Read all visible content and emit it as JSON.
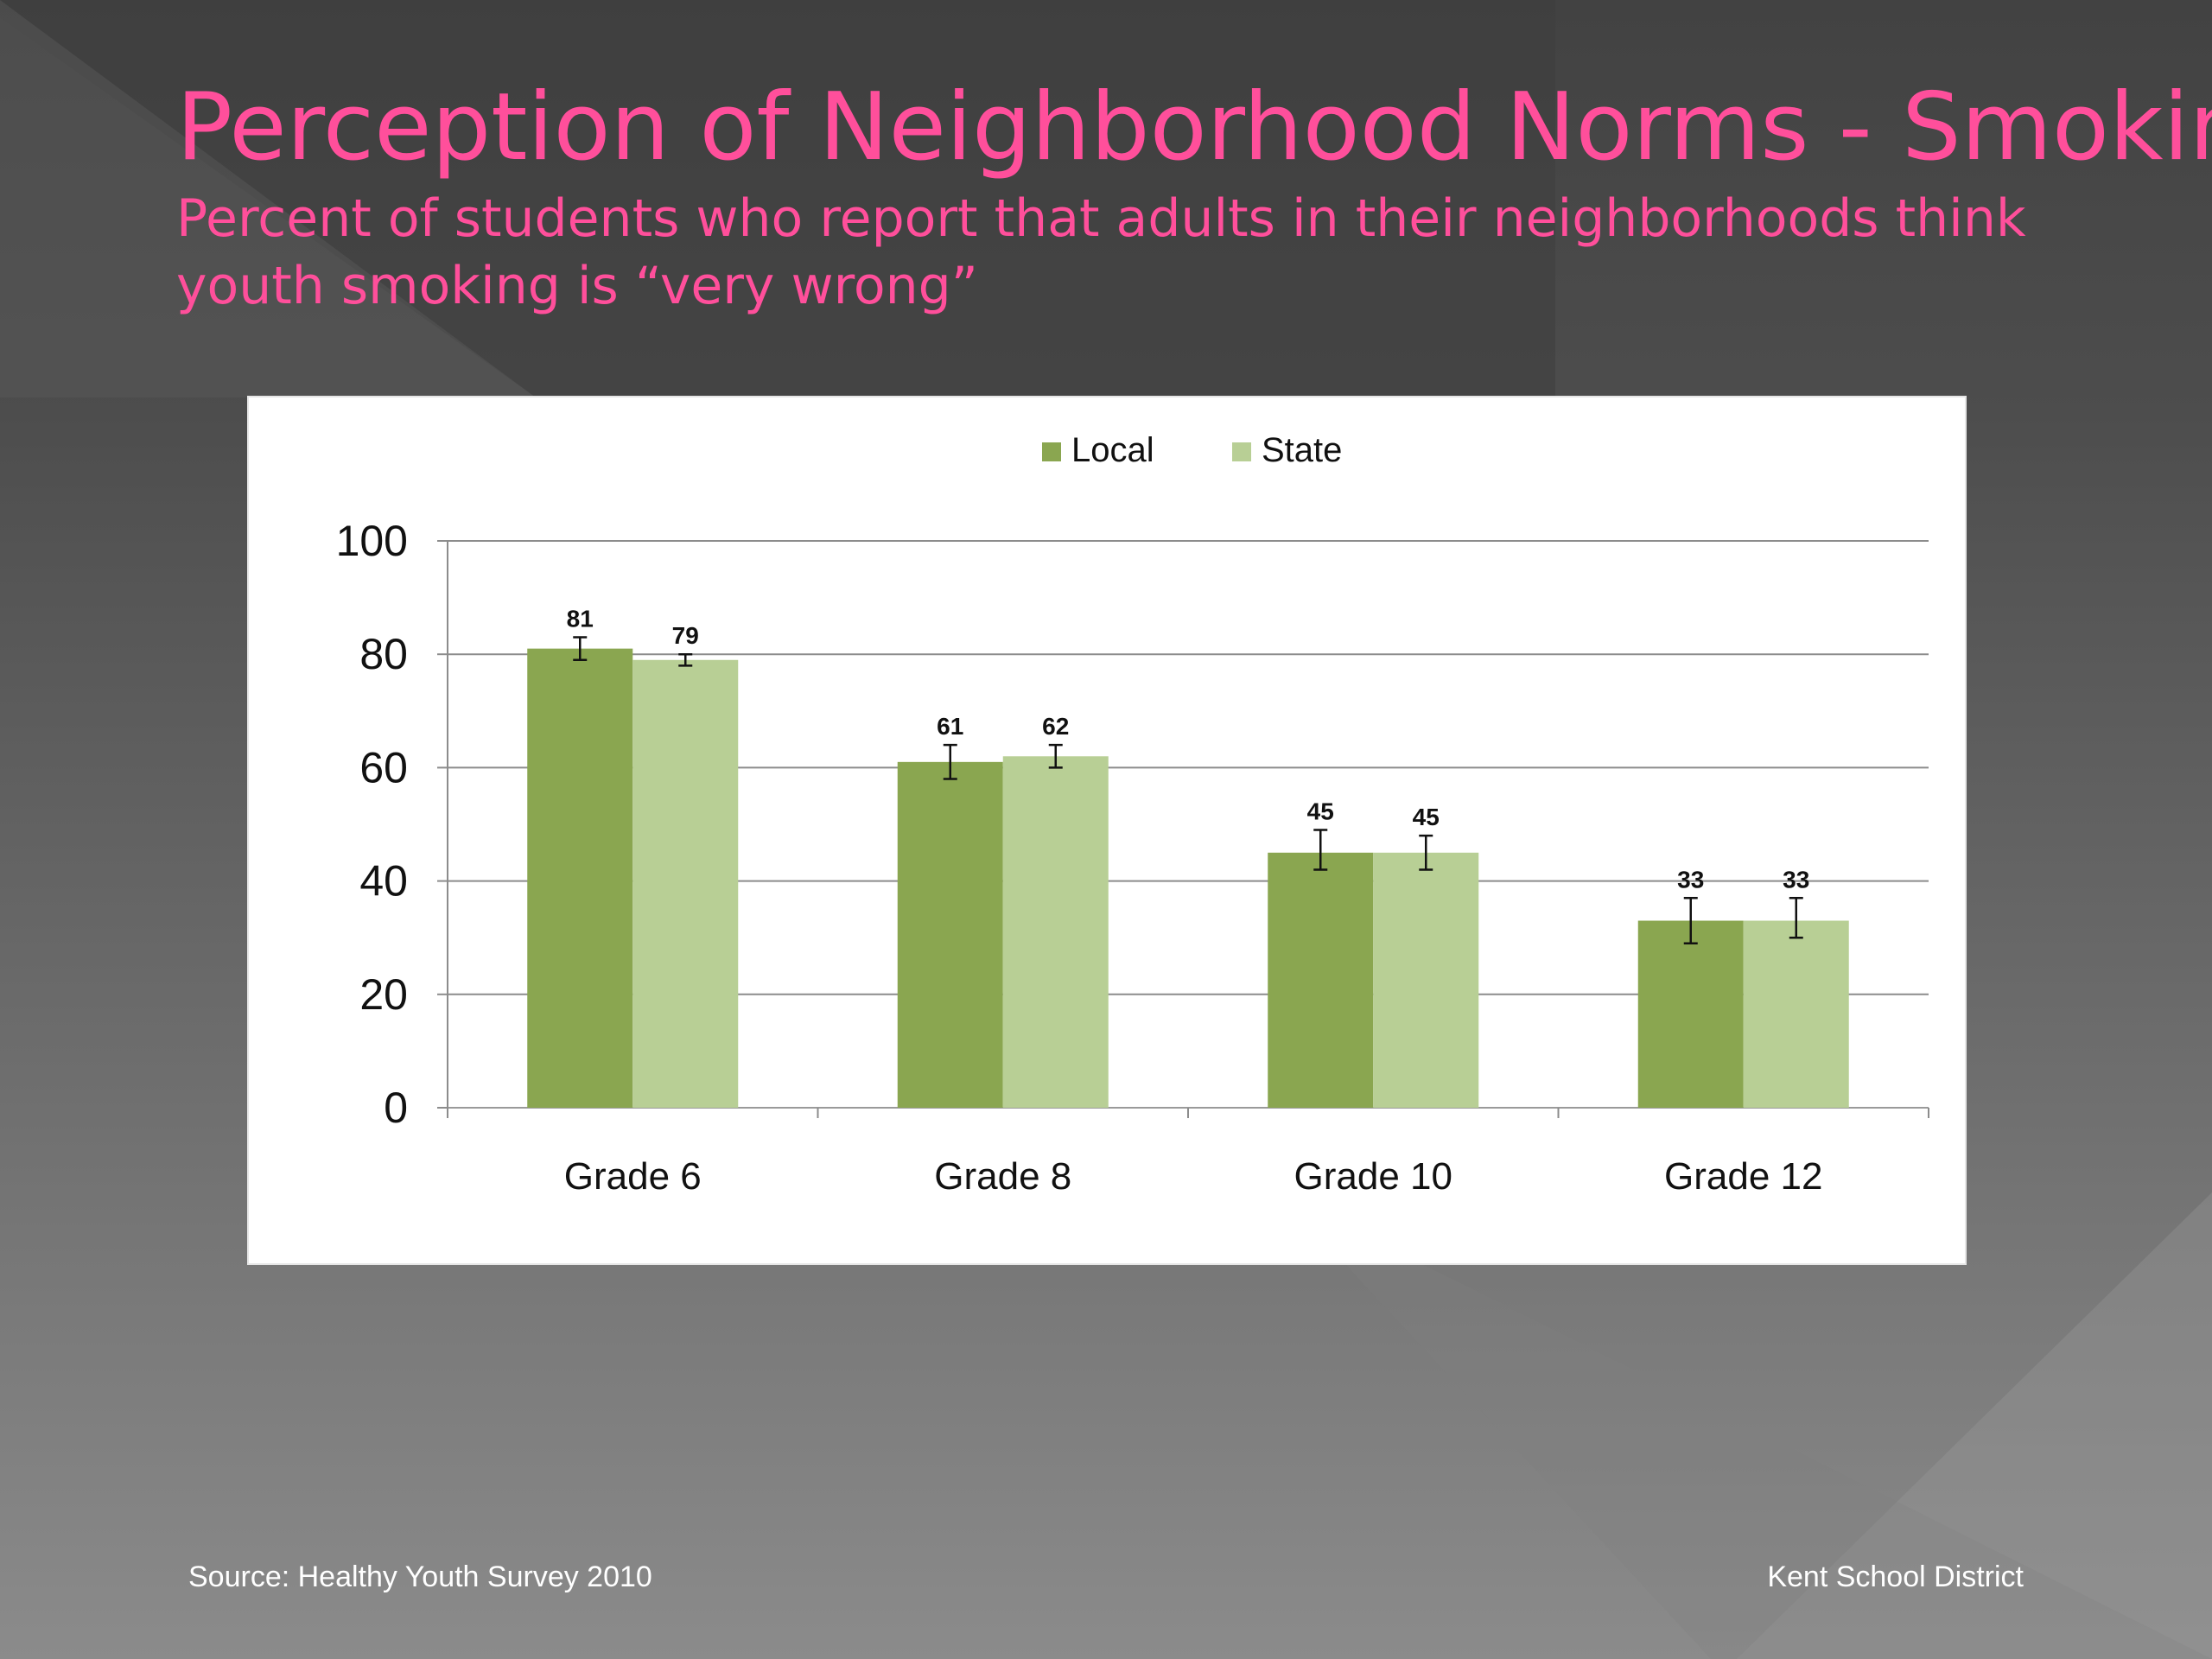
{
  "slide": {
    "title": "Perception of Neighborhood Norms - Smoking",
    "subtitle": "Percent of students who report that adults in their neighborhoods think youth smoking is “very wrong”",
    "source": "Source: Healthy Youth Survey 2010",
    "organization": "Kent School District",
    "colors": {
      "title": "#ff4f9b",
      "background": "#4d4d4d"
    }
  },
  "chart_data": {
    "type": "bar",
    "categories": [
      "Grade 6",
      "Grade 8",
      "Grade 10",
      "Grade 12"
    ],
    "series": [
      {
        "name": "Local",
        "color": "#8aa650",
        "values": [
          81,
          61,
          45,
          33
        ],
        "labels": [
          "81",
          "61",
          "45",
          "33"
        ],
        "error_low": [
          79,
          58,
          42,
          29
        ],
        "error_high": [
          83,
          64,
          49,
          37
        ]
      },
      {
        "name": "State",
        "color": "#b8cf95",
        "values": [
          79,
          62,
          45,
          33
        ],
        "labels": [
          "79",
          "62",
          "45",
          "33"
        ],
        "error_low": [
          78,
          60,
          42,
          30
        ],
        "error_high": [
          80,
          64,
          48,
          37
        ]
      }
    ],
    "ylim": [
      0,
      100
    ],
    "yticks": [
      "0",
      "20",
      "40",
      "60",
      "80",
      "100"
    ],
    "xlabel": "",
    "ylabel": "",
    "legend": "top-center",
    "grid": true,
    "error_bars": true
  }
}
